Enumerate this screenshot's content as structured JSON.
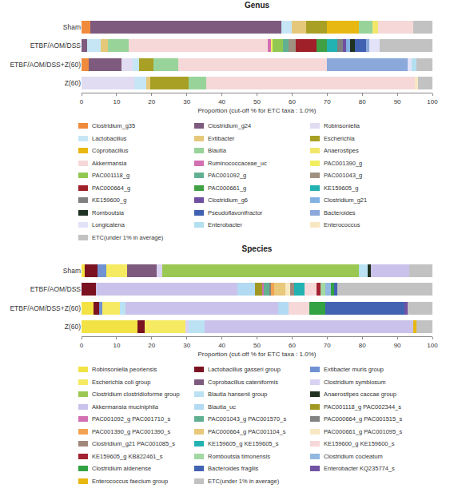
{
  "chart_data": [
    {
      "type": "bar",
      "title": "Genus",
      "orientation": "horizontal",
      "stacked": true,
      "grid": false,
      "legend": "bottom",
      "xlabel": "Proportion (cut-off % for ETC taxa : 1.0%)",
      "xlim": [
        0,
        100
      ],
      "xticks": [
        0,
        10,
        20,
        30,
        40,
        50,
        60,
        70,
        80,
        90,
        100
      ],
      "categories": [
        "Sham",
        "ETBF/AOM/DSS",
        "ETBF/AOM/DSS+Z(60)",
        "Z(60)"
      ],
      "series": [
        {
          "name": "Clostridium_g35",
          "color": "#f08a3c",
          "values": [
            2.5,
            0,
            2,
            0
          ]
        },
        {
          "name": "Clostridium_g24",
          "color": "#7e5b7e",
          "values": [
            54.5,
            1.5,
            9.5,
            0
          ]
        },
        {
          "name": "Robinsoniella",
          "color": "#e2dcf2",
          "values": [
            0,
            0,
            3,
            15
          ]
        },
        {
          "name": "Lactobacillus",
          "color": "#c6e6f6",
          "values": [
            3,
            4,
            2,
            3.5
          ]
        },
        {
          "name": "Extibacter",
          "color": "#e6c87a",
          "values": [
            4,
            2,
            0,
            1
          ]
        },
        {
          "name": "Escherichia",
          "color": "#a8a024",
          "values": [
            6,
            0,
            4,
            11
          ]
        },
        {
          "name": "Coprobacillus",
          "color": "#e8b812",
          "values": [
            9,
            0,
            0,
            0
          ]
        },
        {
          "name": "Blautia",
          "color": "#98d49a",
          "values": [
            4,
            6,
            7,
            5
          ]
        },
        {
          "name": "Anaerostipes",
          "color": "#f2e66a",
          "values": [
            1.5,
            0,
            0,
            0
          ]
        },
        {
          "name": "Akkermansia",
          "color": "#f6d8d8",
          "values": [
            10,
            39.5,
            42.5,
            59.5
          ]
        },
        {
          "name": "Ruminococcaceae_uc",
          "color": "#d270b2",
          "values": [
            0,
            1,
            0,
            0
          ]
        },
        {
          "name": "PAC001390_g",
          "color": "#f2ee60",
          "values": [
            0,
            0.5,
            0,
            0
          ]
        },
        {
          "name": "PAC001118_g",
          "color": "#92c852",
          "values": [
            0,
            3,
            0,
            0
          ]
        },
        {
          "name": "PAC001092_g",
          "color": "#62b092",
          "values": [
            0,
            1.5,
            0,
            0
          ]
        },
        {
          "name": "PAC001043_g",
          "color": "#a09080",
          "values": [
            0,
            2,
            0,
            0
          ]
        },
        {
          "name": "PAC000664_g",
          "color": "#a0202a",
          "values": [
            0,
            6,
            0,
            0
          ]
        },
        {
          "name": "PAC000661_g",
          "color": "#40a044",
          "values": [
            0,
            3,
            0,
            0
          ]
        },
        {
          "name": "KE159605_g",
          "color": "#22b2b2",
          "values": [
            0,
            3,
            0,
            0
          ]
        },
        {
          "name": "KE159600_g",
          "color": "#808080",
          "values": [
            0,
            1.5,
            0,
            0
          ]
        },
        {
          "name": "Clostridium_g6",
          "color": "#7050a2",
          "values": [
            0,
            1,
            0,
            0
          ]
        },
        {
          "name": "Clostridium_g21",
          "color": "#82b2e2",
          "values": [
            0,
            1,
            0,
            0
          ]
        },
        {
          "name": "Romboutsia",
          "color": "#203222",
          "values": [
            0,
            1.5,
            0,
            0
          ]
        },
        {
          "name": "Pseudoflavonifractor",
          "color": "#4060b2",
          "values": [
            0,
            3,
            0,
            0
          ]
        },
        {
          "name": "Bacteroides",
          "color": "#8aa8da",
          "values": [
            0,
            1,
            23,
            0
          ]
        },
        {
          "name": "Longicatena",
          "color": "#e2e2f8",
          "values": [
            0,
            3,
            1,
            0
          ]
        },
        {
          "name": "Enterobacter",
          "color": "#b2e0f0",
          "values": [
            0,
            0,
            1.5,
            0
          ]
        },
        {
          "name": "Enterococcus",
          "color": "#f8e8c2",
          "values": [
            0,
            0,
            0,
            1
          ]
        },
        {
          "name": "ETC(under 1% in average)",
          "color": "#c2c2c2",
          "values": [
            5.5,
            15,
            4.5,
            4
          ]
        }
      ]
    },
    {
      "type": "bar",
      "title": "Species",
      "orientation": "horizontal",
      "stacked": true,
      "grid": false,
      "legend": "bottom",
      "xlabel": "Proportion (cut-off % for ETC taxa : 1.0%)",
      "xlim": [
        0,
        100
      ],
      "xticks": [
        0,
        10,
        20,
        30,
        40,
        50,
        60,
        70,
        80,
        90,
        100
      ],
      "categories": [
        "Sham",
        "ETBF/AOM/DSS",
        "ETBF/AOM/DSS+Z(60)",
        "Z(60)"
      ],
      "series": [
        {
          "name": "Robinsoniella peoriensis",
          "color": "#f2e244",
          "values": [
            1,
            0,
            3.5,
            16
          ]
        },
        {
          "name": "Lactobacillus gasseri group",
          "color": "#7a1222",
          "values": [
            3.5,
            4,
            1.5,
            2
          ]
        },
        {
          "name": "Extibacter muris group",
          "color": "#7092d2",
          "values": [
            2.5,
            0,
            1,
            0
          ]
        },
        {
          "name": "Escherichia coli group",
          "color": "#f6ea62",
          "values": [
            6,
            0,
            5,
            11.5
          ]
        },
        {
          "name": "Coprobacillus cateniformis",
          "color": "#7e5b7e",
          "values": [
            8.5,
            0,
            0,
            0
          ]
        },
        {
          "name": "Clostridium symbiosum",
          "color": "#dad2f2",
          "values": [
            1.5,
            0,
            0,
            1
          ]
        },
        {
          "name": "Clostridium clostridioforme group",
          "color": "#9ac852",
          "values": [
            56,
            0,
            0,
            0
          ]
        },
        {
          "name": "Blautia hansenii group",
          "color": "#bae2f2",
          "values": [
            2.5,
            0,
            1.5,
            4.5
          ]
        },
        {
          "name": "Anaerostipes caccae group",
          "color": "#223222",
          "values": [
            1,
            0,
            0,
            0
          ]
        },
        {
          "name": "Akkermansia muciniphila",
          "color": "#cac2ea",
          "values": [
            11,
            40.5,
            43.5,
            59.5
          ]
        },
        {
          "name": "Blautia_uc",
          "color": "#b2daf2",
          "values": [
            0,
            5,
            3,
            0
          ]
        },
        {
          "name": "PAC001118_g PAC002344_s",
          "color": "#a09822",
          "values": [
            0,
            2,
            0,
            0
          ]
        },
        {
          "name": "PAC001092_g PAC001710_s",
          "color": "#d270b2",
          "values": [
            0,
            0.5,
            0,
            0
          ]
        },
        {
          "name": "PAC001043_g PAC001570_s",
          "color": "#62b092",
          "values": [
            0,
            1.5,
            0,
            0
          ]
        },
        {
          "name": "PAC000664_g PAC001515_s",
          "color": "#828282",
          "values": [
            0,
            0.5,
            0,
            0
          ]
        },
        {
          "name": "PAC001390_g PAC001390_s",
          "color": "#f2a252",
          "values": [
            0,
            1,
            0,
            0
          ]
        },
        {
          "name": "PAC000664_g PAC001104_s",
          "color": "#e8c87a",
          "values": [
            0,
            3,
            0,
            0
          ]
        },
        {
          "name": "PAC000661_g PAC001095_s",
          "color": "#f8e8c2",
          "values": [
            0,
            1.5,
            0,
            0
          ]
        },
        {
          "name": "Clostridium_g21 PAC001085_s",
          "color": "#a2887a",
          "values": [
            0,
            1,
            0,
            0
          ]
        },
        {
          "name": "KE159605_g KE159605_s",
          "color": "#22b2b2",
          "values": [
            0,
            3,
            0,
            0
          ]
        },
        {
          "name": "KE159600_g KE159600_s",
          "color": "#f6d8d8",
          "values": [
            0,
            3.5,
            6,
            0
          ]
        },
        {
          "name": "KE159605_g KB822461_s",
          "color": "#a22232",
          "values": [
            0,
            1,
            0,
            0
          ]
        },
        {
          "name": "Romboutsia timonensis",
          "color": "#a2d8a2",
          "values": [
            0,
            1.5,
            0,
            0
          ]
        },
        {
          "name": "Clostridium cocleatum",
          "color": "#92b8e2",
          "values": [
            0,
            1.5,
            0,
            0
          ]
        },
        {
          "name": "Clostridium aldenense",
          "color": "#32a242",
          "values": [
            0,
            1,
            4.5,
            0
          ]
        },
        {
          "name": "Bacteroides fragilis",
          "color": "#4262b2",
          "values": [
            0,
            1,
            22.5,
            0
          ]
        },
        {
          "name": "Enterobacter KQ235774_s",
          "color": "#7252a2",
          "values": [
            0,
            0,
            1,
            0
          ]
        },
        {
          "name": "Enterococcus faecium group",
          "color": "#e8b812",
          "values": [
            0,
            0,
            0,
            1
          ]
        },
        {
          "name": "ETC(under 1% in average)",
          "color": "#c2c2c2",
          "values": [
            6.5,
            27,
            7,
            4.5
          ]
        }
      ]
    }
  ]
}
